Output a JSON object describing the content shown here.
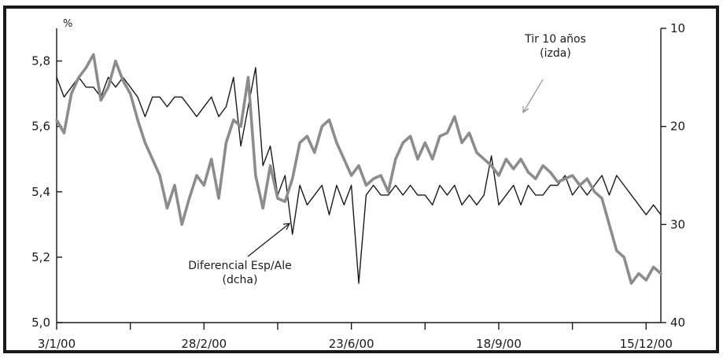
{
  "chart_data": {
    "type": "line",
    "left_axis": {
      "unit": "%",
      "ticks": [
        "5,0",
        "5,2",
        "5,4",
        "5,6",
        "5,8"
      ],
      "tick_values": [
        5.0,
        5.2,
        5.4,
        5.6,
        5.8
      ],
      "range": [
        5.0,
        5.9
      ]
    },
    "right_axis": {
      "ticks": [
        "10",
        "20",
        "30",
        "40"
      ],
      "tick_values": [
        10,
        20,
        30,
        40
      ],
      "range": [
        10,
        40
      ],
      "inverted": true
    },
    "x_axis": {
      "tick_labels": [
        "3/1/00",
        "28/2/00",
        "23/6/00",
        "18/9/00",
        "15/12/00"
      ],
      "tick_positions": [
        0,
        1,
        2,
        3,
        4,
        5,
        6,
        7,
        8
      ],
      "labelled_positions": [
        0,
        2,
        4,
        6,
        8
      ],
      "range": [
        0,
        8.2
      ]
    },
    "annotations": {
      "tir_line1": "Tir 10 años",
      "tir_line2": "(izda)",
      "dif_line1": "Diferencial Esp/Ale",
      "dif_line2": "(dcha)"
    },
    "series": [
      {
        "name": "Tir 10 años (izda)",
        "axis": "left",
        "color": "#8c8c8c",
        "x": [
          0,
          0.1,
          0.2,
          0.3,
          0.4,
          0.5,
          0.6,
          0.7,
          0.8,
          0.9,
          1.0,
          1.1,
          1.2,
          1.3,
          1.4,
          1.5,
          1.6,
          1.7,
          1.8,
          1.9,
          2.0,
          2.1,
          2.2,
          2.3,
          2.4,
          2.5,
          2.6,
          2.7,
          2.8,
          2.9,
          3.0,
          3.1,
          3.2,
          3.3,
          3.4,
          3.5,
          3.6,
          3.7,
          3.8,
          3.9,
          4.0,
          4.1,
          4.2,
          4.3,
          4.4,
          4.5,
          4.6,
          4.7,
          4.8,
          4.9,
          5.0,
          5.1,
          5.2,
          5.3,
          5.4,
          5.5,
          5.6,
          5.7,
          5.8,
          5.9,
          6.0,
          6.1,
          6.2,
          6.3,
          6.4,
          6.5,
          6.6,
          6.7,
          6.8,
          6.9,
          7.0,
          7.1,
          7.2,
          7.3,
          7.4,
          7.5,
          7.6,
          7.7,
          7.8,
          7.9,
          8.0,
          8.1,
          8.2
        ],
        "values": [
          5.62,
          5.58,
          5.7,
          5.75,
          5.78,
          5.82,
          5.68,
          5.72,
          5.8,
          5.74,
          5.7,
          5.62,
          5.55,
          5.5,
          5.45,
          5.35,
          5.42,
          5.3,
          5.38,
          5.45,
          5.42,
          5.5,
          5.38,
          5.55,
          5.62,
          5.6,
          5.75,
          5.45,
          5.35,
          5.48,
          5.38,
          5.37,
          5.44,
          5.55,
          5.57,
          5.52,
          5.6,
          5.62,
          5.55,
          5.5,
          5.45,
          5.48,
          5.42,
          5.44,
          5.45,
          5.4,
          5.5,
          5.55,
          5.57,
          5.5,
          5.55,
          5.5,
          5.57,
          5.58,
          5.63,
          5.55,
          5.58,
          5.52,
          5.5,
          5.48,
          5.45,
          5.5,
          5.47,
          5.5,
          5.46,
          5.44,
          5.48,
          5.46,
          5.43,
          5.44,
          5.45,
          5.42,
          5.44,
          5.4,
          5.38,
          5.3,
          5.22,
          5.2,
          5.12,
          5.15,
          5.13,
          5.17,
          5.15
        ]
      },
      {
        "name": "Diferencial Esp/Ale (dcha)",
        "axis": "right",
        "color": "#1a1a1a",
        "x": [
          0,
          0.1,
          0.2,
          0.3,
          0.4,
          0.5,
          0.6,
          0.7,
          0.8,
          0.9,
          1.0,
          1.1,
          1.2,
          1.3,
          1.4,
          1.5,
          1.6,
          1.7,
          1.8,
          1.9,
          2.0,
          2.1,
          2.2,
          2.3,
          2.4,
          2.5,
          2.6,
          2.7,
          2.8,
          2.9,
          3.0,
          3.1,
          3.2,
          3.3,
          3.4,
          3.5,
          3.6,
          3.7,
          3.8,
          3.9,
          4.0,
          4.1,
          4.2,
          4.3,
          4.4,
          4.5,
          4.6,
          4.7,
          4.8,
          4.9,
          5.0,
          5.1,
          5.2,
          5.3,
          5.4,
          5.5,
          5.6,
          5.7,
          5.8,
          5.9,
          6.0,
          6.1,
          6.2,
          6.3,
          6.4,
          6.5,
          6.6,
          6.7,
          6.8,
          6.9,
          7.0,
          7.1,
          7.2,
          7.3,
          7.4,
          7.5,
          7.6,
          7.7,
          7.8,
          7.9,
          8.0,
          8.1,
          8.2
        ],
        "values": [
          15,
          17,
          16,
          15,
          16,
          16,
          17,
          15,
          16,
          15,
          16,
          17,
          19,
          17,
          17,
          18,
          17,
          17,
          18,
          19,
          18,
          17,
          19,
          18,
          15,
          22,
          18,
          14,
          24,
          22,
          27,
          25,
          31,
          26,
          28,
          27,
          26,
          29,
          26,
          28,
          26,
          36,
          27,
          26,
          27,
          27,
          26,
          27,
          26,
          27,
          27,
          28,
          26,
          27,
          26,
          28,
          27,
          28,
          27,
          23,
          28,
          27,
          26,
          28,
          26,
          27,
          27,
          26,
          26,
          25,
          27,
          26,
          27,
          26,
          25,
          27,
          25,
          26,
          27,
          28,
          29,
          28,
          29
        ]
      }
    ]
  }
}
